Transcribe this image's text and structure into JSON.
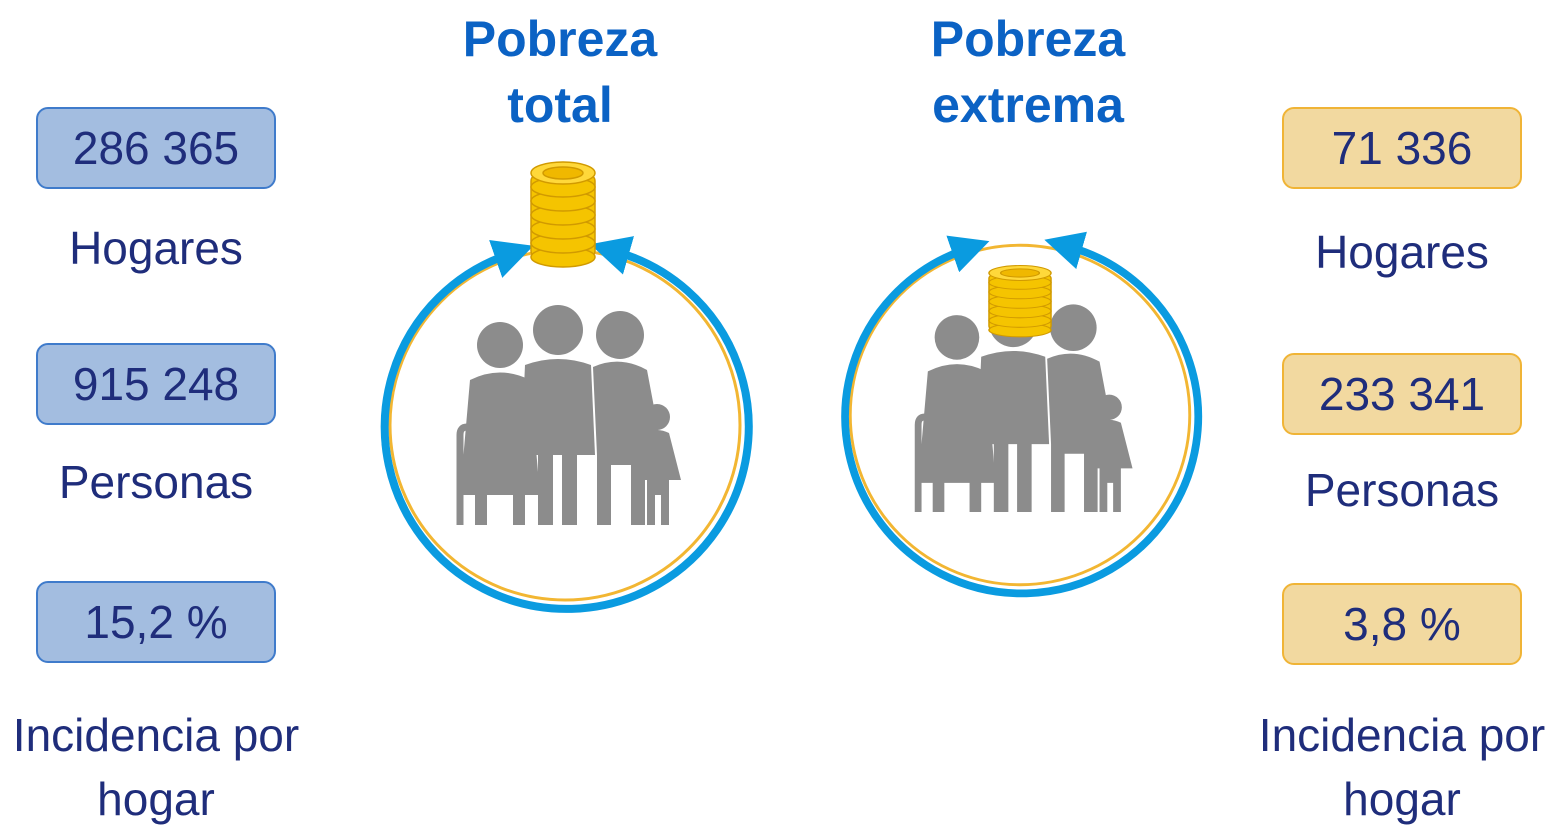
{
  "panels": [
    {
      "title": [
        "Pobreza",
        "total"
      ],
      "stats": [
        {
          "value": "286 365",
          "label": [
            "Hogares"
          ]
        },
        {
          "value": "915 248",
          "label": [
            "Personas"
          ]
        },
        {
          "value": "15,2 %",
          "label": [
            "Incidencia por",
            "hogar"
          ]
        }
      ]
    },
    {
      "title": [
        "Pobreza",
        "extrema"
      ],
      "stats": [
        {
          "value": "71 336",
          "label": [
            "Hogares"
          ]
        },
        {
          "value": "233 341",
          "label": [
            "Personas"
          ]
        },
        {
          "value": "3,8 %",
          "label": [
            "Incidencia por",
            "hogar"
          ]
        }
      ]
    }
  ]
}
